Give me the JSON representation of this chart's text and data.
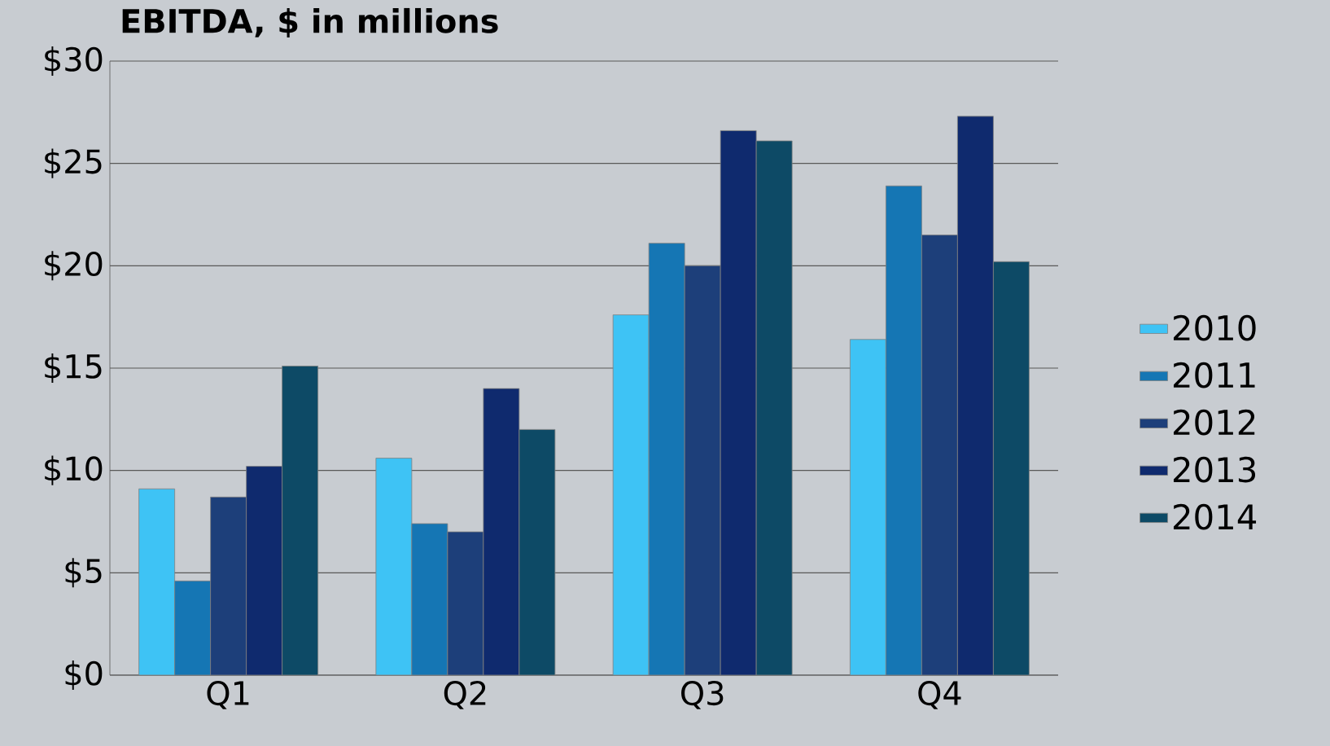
{
  "chart_data": {
    "type": "bar",
    "title": "EBITDA, $ in millions",
    "categories": [
      "Q1",
      "Q2",
      "Q3",
      "Q4"
    ],
    "series": [
      {
        "name": "2010",
        "color": "#3ec3f5",
        "values": [
          9.1,
          10.6,
          17.6,
          16.4
        ]
      },
      {
        "name": "2011",
        "color": "#1576b4",
        "values": [
          4.6,
          7.4,
          21.1,
          23.9
        ]
      },
      {
        "name": "2012",
        "color": "#1d3f7a",
        "values": [
          8.7,
          7.0,
          20.0,
          21.5
        ]
      },
      {
        "name": "2013",
        "color": "#0f2a6e",
        "values": [
          10.2,
          14.0,
          26.6,
          27.3
        ]
      },
      {
        "name": "2014",
        "color": "#0d4a66",
        "values": [
          15.1,
          12.0,
          26.1,
          20.2
        ]
      }
    ],
    "ylim": [
      0,
      30
    ],
    "yticks": [
      {
        "value": 0,
        "label": "$0"
      },
      {
        "value": 5,
        "label": "$5"
      },
      {
        "value": 10,
        "label": "$10"
      },
      {
        "value": 15,
        "label": "$15"
      },
      {
        "value": 20,
        "label": "$20"
      },
      {
        "value": 25,
        "label": "$25"
      },
      {
        "value": 30,
        "label": "$30"
      }
    ],
    "grid": "y",
    "legend": "right"
  }
}
